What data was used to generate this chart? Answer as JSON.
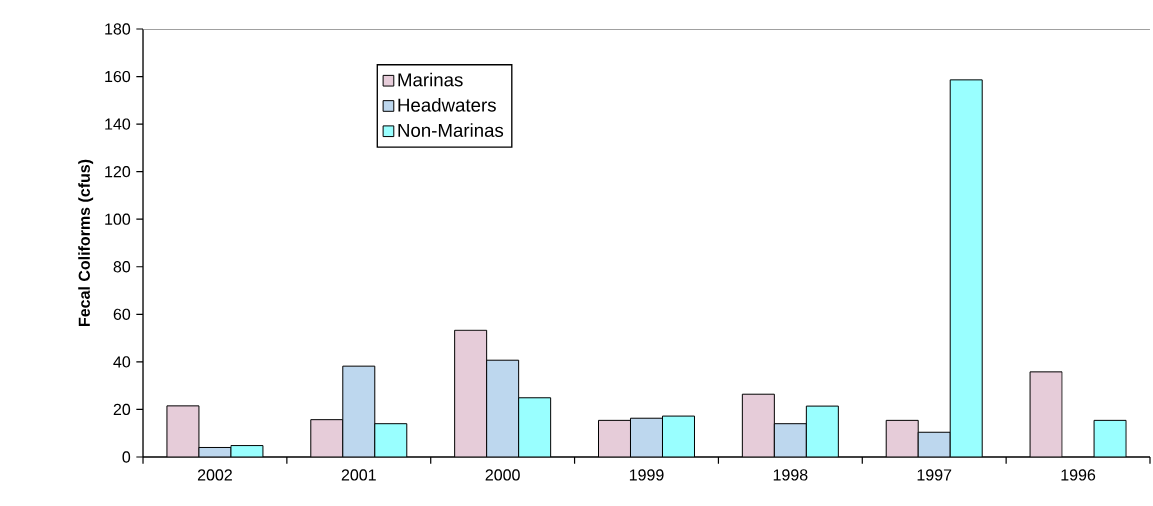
{
  "chart_data": {
    "type": "bar",
    "ylabel": "Fecal Coliforms (cfus)",
    "categories": [
      "2002",
      "2001",
      "2000",
      "1999",
      "1998",
      "1997",
      "1996"
    ],
    "series": [
      {
        "name": "Marinas",
        "color": "#e6ccd9",
        "values": [
          21.5,
          15.7,
          53.3,
          15.4,
          26.4,
          15.4,
          35.8
        ]
      },
      {
        "name": "Headwaters",
        "color": "#bdd7ee",
        "values": [
          4,
          38.2,
          40.7,
          16.3,
          14,
          10.4,
          null
        ]
      },
      {
        "name": "Non-Marinas",
        "color": "#99ffff",
        "values": [
          4.8,
          14,
          24.9,
          17.2,
          21.4,
          158.6,
          15.4
        ]
      }
    ],
    "ylim": [
      0,
      180
    ],
    "yticks": [
      0,
      20,
      40,
      60,
      80,
      100,
      120,
      140,
      160,
      180
    ],
    "grid": false,
    "legend": "top left"
  }
}
